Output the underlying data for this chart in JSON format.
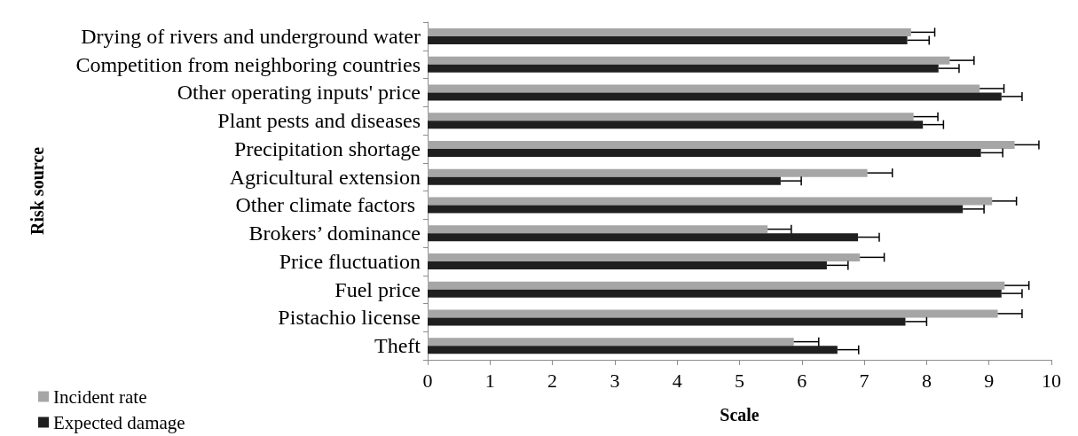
{
  "chart_data": {
    "type": "bar",
    "orientation": "horizontal",
    "ylabel": "Risk source",
    "xlabel": "Scale",
    "categories": [
      "Drying of rivers and underground water",
      "Competition from neighboring countries",
      "Other operating inputs' price",
      "Plant pests and diseases",
      "Precipitation shortage",
      "Agricultural extension",
      "Other climate factors ",
      "Brokers’ dominance",
      "Price fluctuation",
      "Fuel price",
      "Pistachio license",
      "Theft"
    ],
    "series": [
      {
        "name": "Incident rate",
        "color": "#a6a6a6",
        "values": [
          7.75,
          8.37,
          8.85,
          7.79,
          9.41,
          7.05,
          9.05,
          5.45,
          6.93,
          9.25,
          9.14,
          5.87
        ],
        "errors": [
          0.38,
          0.39,
          0.39,
          0.39,
          0.39,
          0.4,
          0.39,
          0.38,
          0.39,
          0.39,
          0.39,
          0.4
        ]
      },
      {
        "name": "Expected damage",
        "color": "#1f1f1f",
        "values": [
          7.69,
          8.19,
          9.2,
          7.94,
          8.87,
          5.66,
          8.58,
          6.9,
          6.4,
          9.2,
          7.66,
          6.57
        ],
        "errors": [
          0.35,
          0.33,
          0.33,
          0.33,
          0.35,
          0.33,
          0.34,
          0.34,
          0.34,
          0.33,
          0.34,
          0.34
        ]
      }
    ],
    "xlim": [
      0,
      10
    ],
    "xticks": [
      0,
      1,
      2,
      3,
      4,
      5,
      6,
      7,
      8,
      9,
      10
    ],
    "grid": false,
    "legend": "bottom left"
  }
}
